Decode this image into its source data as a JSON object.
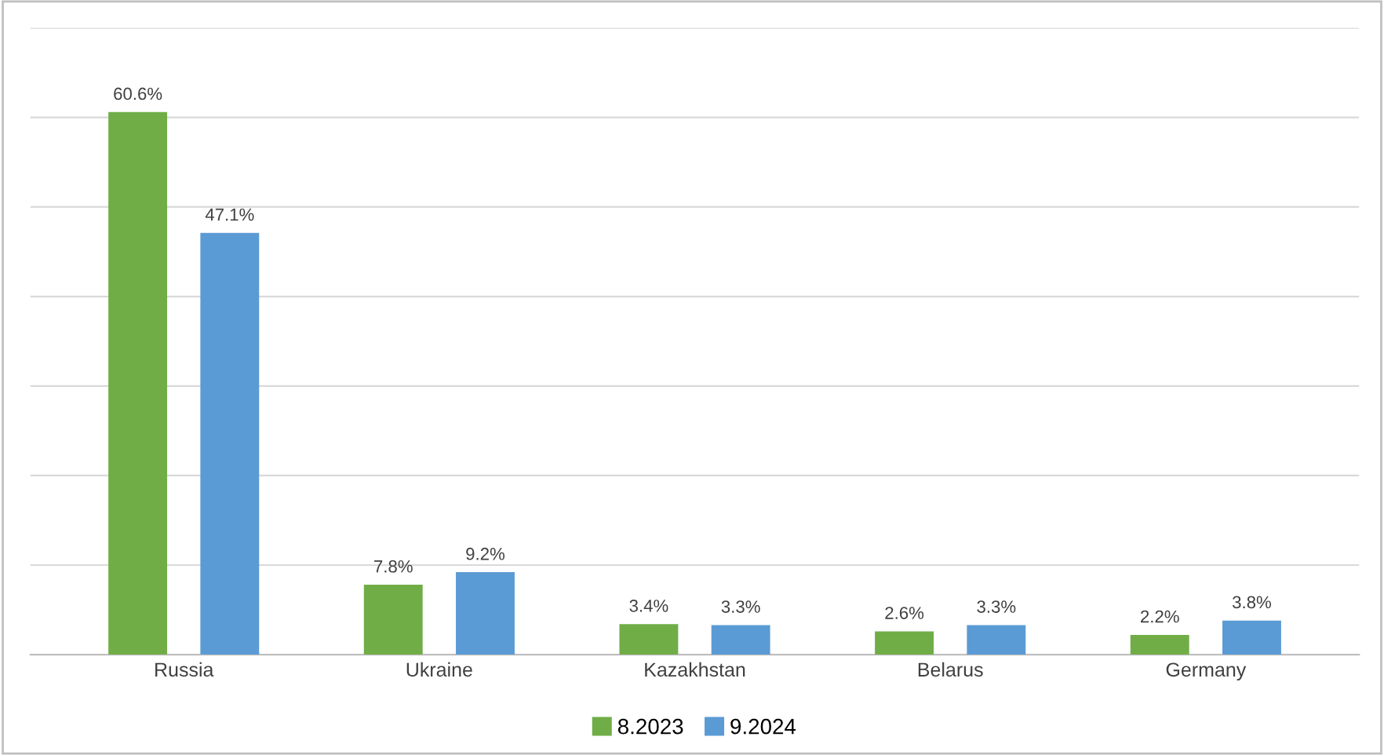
{
  "chart_data": {
    "type": "bar",
    "categories": [
      "Russia",
      "Ukraine",
      "Kazakhstan",
      "Belarus",
      "Germany"
    ],
    "series": [
      {
        "name": "8.2023",
        "color": "#70ad47",
        "values": [
          60.6,
          7.8,
          3.4,
          2.6,
          2.2
        ],
        "value_labels": [
          "60.6%",
          "7.8%",
          "3.4%",
          "2.6%",
          "2.2%"
        ]
      },
      {
        "name": "9.2024",
        "color": "#5b9bd5",
        "values": [
          47.1,
          9.2,
          3.3,
          3.3,
          3.8
        ],
        "value_labels": [
          "47.1%",
          "9.2%",
          "3.3%",
          "3.3%",
          "3.8%"
        ]
      }
    ],
    "ylim": [
      0,
      70
    ],
    "yticks": [
      {
        "value": 0,
        "label": null
      },
      {
        "value": 10,
        "label": null
      },
      {
        "value": 20,
        "label": null
      },
      {
        "value": 30,
        "label": null
      },
      {
        "value": 40,
        "label": null
      },
      {
        "value": 50,
        "label": null
      },
      {
        "value": 60,
        "label": null
      },
      {
        "value": 70,
        "label": null
      }
    ],
    "grid": "y",
    "legend": "bottom",
    "tick_labels": "x"
  }
}
